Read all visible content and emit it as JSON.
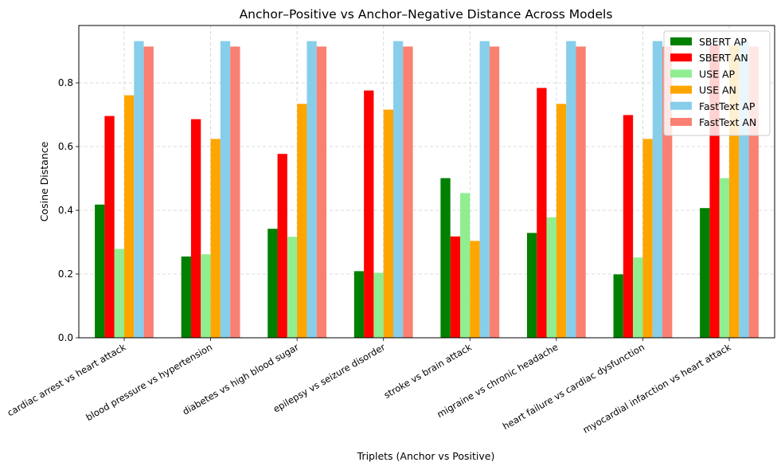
{
  "chart_data": {
    "type": "bar",
    "title": "Anchor–Positive vs Anchor–Negative Distance Across Models",
    "xlabel": "Triplets (Anchor vs Positive)",
    "ylabel": "Cosine Distance",
    "ylim": [
      0,
      0.98
    ],
    "yticks": [
      "0.0",
      "0.2",
      "0.4",
      "0.6",
      "0.8"
    ],
    "grid": true,
    "legend_position": "top-right",
    "categories": [
      "cardiac arrest vs heart attack",
      "blood pressure vs hypertension",
      "diabetes vs high blood sugar",
      "epilepsy vs seizure disorder",
      "stroke vs brain attack",
      "migraine vs chronic headache",
      "heart failure vs cardiac dysfunction",
      "myocardial infarction vs heart attack"
    ],
    "series": [
      {
        "name": "SBERT AP",
        "color": "#008000",
        "values": [
          0.418,
          0.255,
          0.342,
          0.209,
          0.501,
          0.329,
          0.199,
          0.407
        ]
      },
      {
        "name": "SBERT AN",
        "color": "#ff0000",
        "values": [
          0.696,
          0.686,
          0.577,
          0.776,
          0.318,
          0.784,
          0.699,
          0.918
        ]
      },
      {
        "name": "USE AP",
        "color": "#90ee90",
        "values": [
          0.279,
          0.262,
          0.317,
          0.204,
          0.454,
          0.378,
          0.252,
          0.501
        ]
      },
      {
        "name": "USE AN",
        "color": "#ffa500",
        "values": [
          0.761,
          0.624,
          0.734,
          0.716,
          0.304,
          0.734,
          0.624,
          0.918
        ]
      },
      {
        "name": "FastText AP",
        "color": "#87ceeb",
        "values": [
          0.931,
          0.931,
          0.931,
          0.931,
          0.931,
          0.931,
          0.931,
          0.931
        ]
      },
      {
        "name": "FastText AN",
        "color": "#fa8072",
        "values": [
          0.914,
          0.914,
          0.914,
          0.914,
          0.914,
          0.914,
          0.914,
          0.914
        ]
      }
    ]
  }
}
